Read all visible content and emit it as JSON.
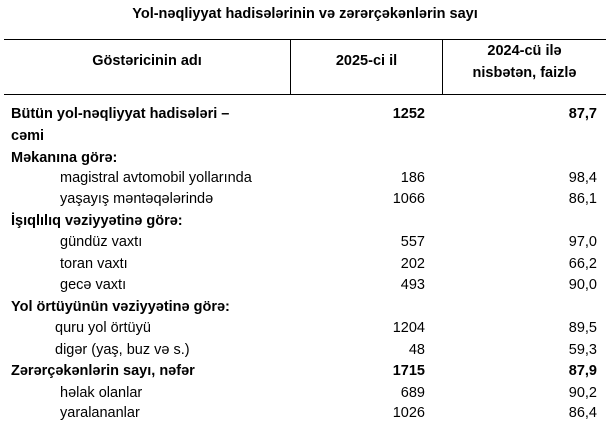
{
  "title": "Yol-nəqliyyat hadisələrinin və zərərçəkənlərin sayı",
  "headers": {
    "name": "Göstəricinin adı",
    "year": "2025-ci il",
    "ratio_line1": "2024-cü ilə",
    "ratio_line2": "nisbətən, faizlə"
  },
  "rows": [
    {
      "label": "Bütün yol-nəqliyyat hadisələri –",
      "v2025": "1252",
      "ratio": "87,7",
      "style": "bold"
    },
    {
      "label": "cəmi",
      "v2025": "",
      "ratio": "",
      "style": "bold"
    },
    {
      "label": "Məkanına görə:",
      "v2025": "",
      "ratio": "",
      "style": "bold"
    },
    {
      "label": "magistral avtomobil yollarında",
      "v2025": "186",
      "ratio": "98,4",
      "style": "indent"
    },
    {
      "label": "yaşayış məntəqələrində",
      "v2025": "1066",
      "ratio": "86,1",
      "style": "indent"
    },
    {
      "label": "İşıqlılıq vəziyyətinə görə:",
      "v2025": "",
      "ratio": "",
      "style": "bold"
    },
    {
      "label": "gündüz vaxtı",
      "v2025": "557",
      "ratio": "97,0",
      "style": "indent"
    },
    {
      "label": "toran vaxtı",
      "v2025": "202",
      "ratio": "66,2",
      "style": "indent"
    },
    {
      "label": "gecə vaxtı",
      "v2025": "493",
      "ratio": "90,0",
      "style": "indent"
    },
    {
      "label": "Yol örtüyünün vəziyyətinə görə:",
      "v2025": "",
      "ratio": "",
      "style": "bold"
    },
    {
      "label": "quru yol örtüyü",
      "v2025": "1204",
      "ratio": "89,5",
      "style": "indent2"
    },
    {
      "label": "digər (yaş, buz və s.)",
      "v2025": "48",
      "ratio": "59,3",
      "style": "indent2"
    },
    {
      "label": "Zərərçəkənlərin sayı, nəfər",
      "v2025": "1715",
      "ratio": "87,9",
      "style": "bold"
    },
    {
      "label": "həlak olanlar",
      "v2025": "689",
      "ratio": "90,2",
      "style": "indent"
    },
    {
      "label": "yaralananlar",
      "v2025": "1026",
      "ratio": "86,4",
      "style": "indent"
    }
  ]
}
